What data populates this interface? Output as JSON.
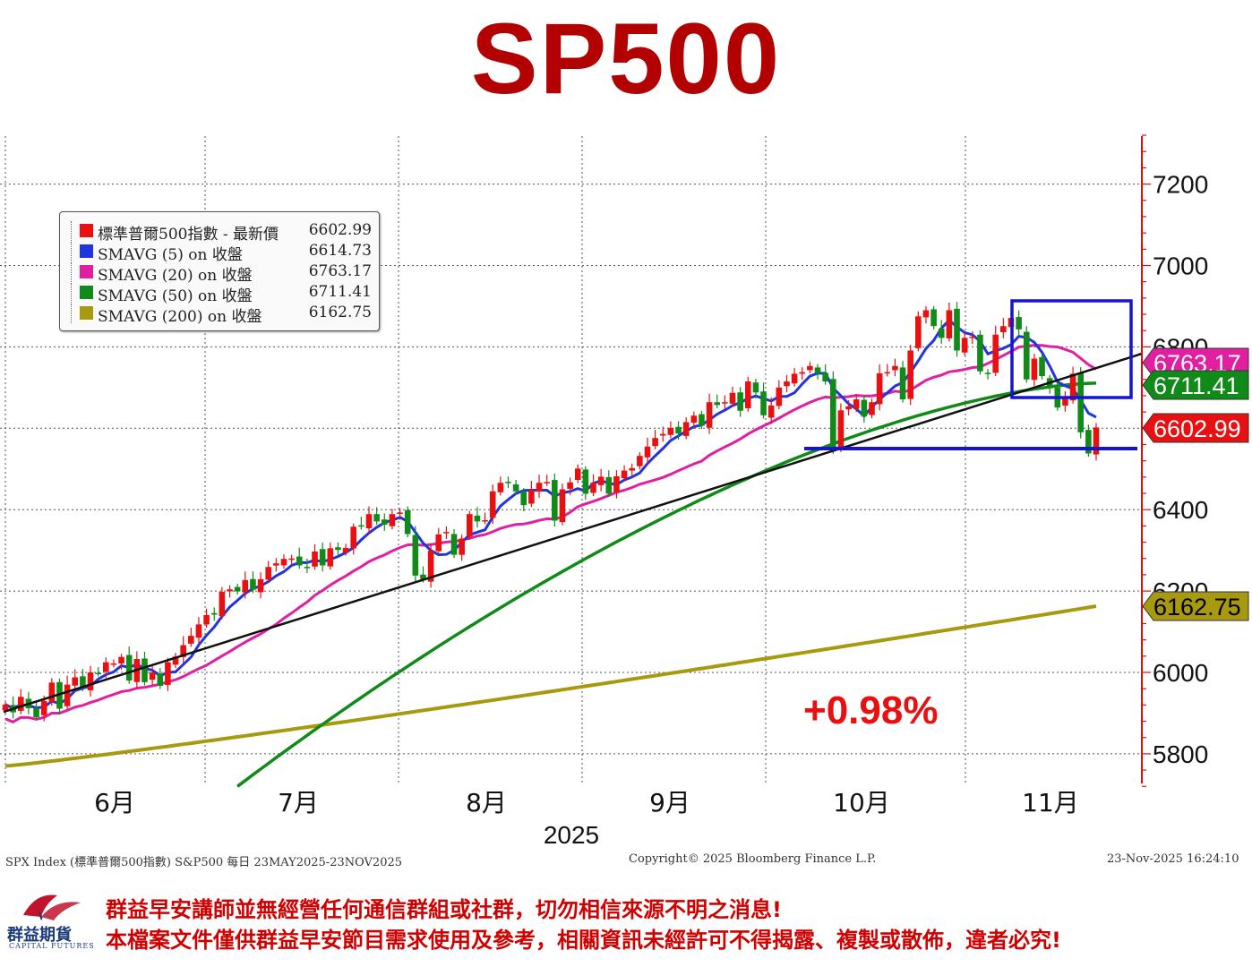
{
  "page_title": "SP500",
  "chart_data": {
    "type": "candlestick",
    "ylim": [
      5700,
      7320
    ],
    "y_ticks": [
      5800,
      6000,
      6200,
      6400,
      6600,
      6800,
      7000,
      7200
    ],
    "x_month_labels": [
      "6月",
      "7月",
      "8月",
      "9月",
      "10月",
      "11月"
    ],
    "x_year_label": "2025",
    "grid": true,
    "legend": {
      "position": "top-left",
      "entries": [
        {
          "name": "標準普爾500指數 - 最新價",
          "value": "6602.99",
          "color": "#e81010"
        },
        {
          "name": "SMAVG (5)  on 收盤",
          "value": "6614.73",
          "color": "#2035e0"
        },
        {
          "name": "SMAVG (20)  on 收盤",
          "value": "6763.17",
          "color": "#e020a0"
        },
        {
          "name": "SMAVG (50)  on 收盤",
          "value": "6711.41",
          "color": "#108a18"
        },
        {
          "name": "SMAVG (200)  on 收盤",
          "value": "6162.75",
          "color": "#a89a10"
        }
      ]
    },
    "value_tags": [
      {
        "label": "6763.17",
        "value": 6763.17,
        "color": "#e020a0",
        "text_color": "#ffffff"
      },
      {
        "label": "6711.41",
        "value": 6711.41,
        "color": "#108a18",
        "text_color": "#ffffff"
      },
      {
        "label": "6602.99",
        "value": 6602.99,
        "color": "#e81010",
        "text_color": "#ffffff"
      },
      {
        "label": "6162.75",
        "value": 6162.75,
        "color": "#a89a10",
        "text_color": "#000000"
      }
    ],
    "annotation": "+0.98%",
    "series_close": [
      5921,
      5902,
      5940,
      5912,
      5890,
      5930,
      5975,
      5911,
      5970,
      5988,
      5962,
      6000,
      5998,
      6025,
      6022,
      6038,
      5980,
      6033,
      5976,
      6000,
      5967,
      6025,
      6039,
      6067,
      6090,
      6118,
      6141,
      6142,
      6198,
      6204,
      6199,
      6227,
      6203,
      6229,
      6259,
      6268,
      6279,
      6280,
      6263,
      6259,
      6297,
      6263,
      6305,
      6301,
      6306,
      6358,
      6359,
      6389,
      6371,
      6363,
      6389,
      6393,
      6340,
      6238,
      6229,
      6299,
      6339,
      6345,
      6289,
      6329,
      6389,
      6371,
      6374,
      6445,
      6466,
      6468,
      6445,
      6411,
      6449,
      6466,
      6468,
      6373,
      6450,
      6467,
      6501,
      6439,
      6466,
      6481,
      6439,
      6482,
      6496,
      6502,
      6532,
      6555,
      6576,
      6586,
      6601,
      6587,
      6615,
      6631,
      6606,
      6664,
      6657,
      6664,
      6687,
      6643,
      6715,
      6688,
      6632,
      6656,
      6700,
      6715,
      6734,
      6738,
      6753,
      6735,
      6715,
      6552,
      6644,
      6654,
      6671,
      6629,
      6664,
      6735,
      6738,
      6753,
      6671,
      6791,
      6875,
      6890,
      6851,
      6822,
      6890,
      6791,
      6822,
      6825,
      6740,
      6735,
      6830,
      6851,
      6871,
      6843,
      6720,
      6771,
      6728,
      6700,
      6651,
      6672,
      6734,
      6590,
      6538,
      6602
    ]
  },
  "source_left": "SPX Index (標準普爾500指數) S&P500 每日 23MAY2025-23NOV2025",
  "source_mid": "Copyright© 2025 Bloomberg Finance L.P.",
  "source_right": "23-Nov-2025 16:24:10",
  "disclaimer_1": "群益早安講師並無經營任何通信群組或社群，切勿相信來源不明之消息!",
  "disclaimer_2": "本檔案文件僅供群益早安節目需求使用及參考，相關資訊未經許可不得揭露、複製或散佈，違者必究!",
  "logo_text": "群益期貨",
  "logo_sub": "CAPITAL FUTURES"
}
